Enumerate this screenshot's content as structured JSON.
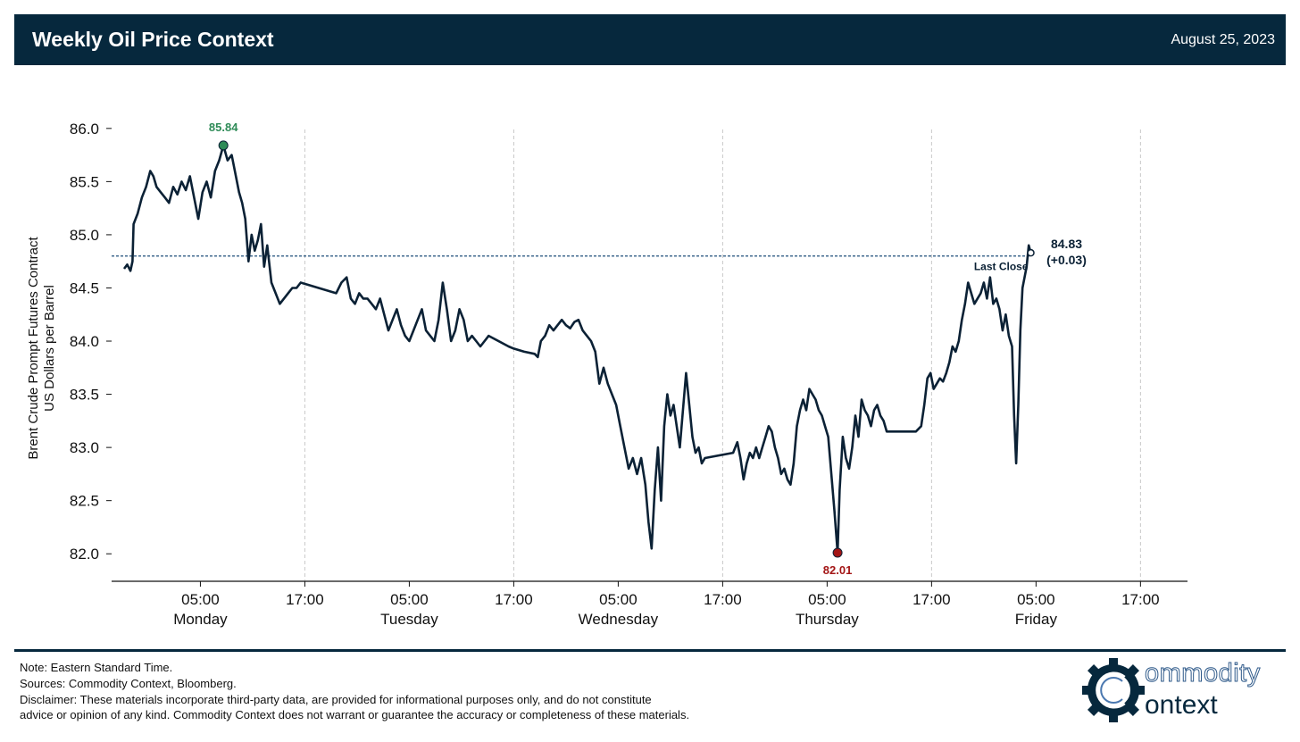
{
  "header": {
    "title": "Weekly Oil Price Context",
    "date": "August 25, 2023",
    "bg_color": "#06283d"
  },
  "chart_data": {
    "type": "line",
    "ylabel_line1": "Brent Crude Prompt Futures Contract",
    "ylabel_line2": "US Dollars per Barrel",
    "ylim": [
      81.75,
      86.2
    ],
    "yticks": [
      "86.0",
      "85.5",
      "85.0",
      "84.5",
      "84.0",
      "83.5",
      "83.0",
      "82.5",
      "82.0"
    ],
    "xlim": [
      -8.5,
      94.5
    ],
    "xticks": [
      {
        "x": 0,
        "label": "05:00",
        "sublabel": "Monday"
      },
      {
        "x": 10,
        "label": "17:00",
        "sublabel": ""
      },
      {
        "x": 20,
        "label": "05:00",
        "sublabel": "Tuesday"
      },
      {
        "x": 30,
        "label": "17:00",
        "sublabel": ""
      },
      {
        "x": 40,
        "label": "05:00",
        "sublabel": "Wednesday"
      },
      {
        "x": 50,
        "label": "17:00",
        "sublabel": ""
      },
      {
        "x": 60,
        "label": "05:00",
        "sublabel": "Thursday"
      },
      {
        "x": 70,
        "label": "17:00",
        "sublabel": ""
      },
      {
        "x": 80,
        "label": "05:00",
        "sublabel": "Friday"
      },
      {
        "x": 90,
        "label": "17:00",
        "sublabel": ""
      }
    ],
    "x_tick_note": "x in hours offset from Monday 05:00 scaled 1 unit = 1.2 h",
    "grid": "vertical dashed at 17:00 ticks",
    "line_color": "#0b2135",
    "series": [
      {
        "values": [
          [
            -7.3,
            84.68
          ],
          [
            -7.0,
            84.72
          ],
          [
            -6.7,
            84.66
          ],
          [
            -6.5,
            84.75
          ],
          [
            -6.4,
            85.1
          ],
          [
            -6.0,
            85.2
          ],
          [
            -5.6,
            85.35
          ],
          [
            -5.2,
            85.45
          ],
          [
            -4.8,
            85.6
          ],
          [
            -4.5,
            85.55
          ],
          [
            -4.2,
            85.45
          ],
          [
            -3.8,
            85.4
          ],
          [
            -3.4,
            85.35
          ],
          [
            -3.0,
            85.3
          ],
          [
            -2.6,
            85.45
          ],
          [
            -2.2,
            85.38
          ],
          [
            -1.8,
            85.5
          ],
          [
            -1.4,
            85.42
          ],
          [
            -1.0,
            85.55
          ],
          [
            -0.6,
            85.35
          ],
          [
            -0.2,
            85.15
          ],
          [
            0.2,
            85.4
          ],
          [
            0.6,
            85.5
          ],
          [
            1.0,
            85.35
          ],
          [
            1.4,
            85.6
          ],
          [
            1.8,
            85.7
          ],
          [
            2.2,
            85.84
          ],
          [
            2.6,
            85.7
          ],
          [
            3.0,
            85.75
          ],
          [
            3.4,
            85.55
          ],
          [
            3.7,
            85.4
          ],
          [
            4.0,
            85.3
          ],
          [
            4.3,
            85.15
          ],
          [
            4.6,
            84.75
          ],
          [
            4.9,
            85.0
          ],
          [
            5.2,
            84.85
          ],
          [
            5.5,
            84.95
          ],
          [
            5.8,
            85.1
          ],
          [
            6.1,
            84.7
          ],
          [
            6.4,
            84.9
          ],
          [
            6.8,
            84.55
          ],
          [
            7.2,
            84.45
          ],
          [
            7.6,
            84.35
          ],
          [
            8.0,
            84.4
          ],
          [
            8.4,
            84.45
          ],
          [
            8.8,
            84.5
          ],
          [
            9.2,
            84.5
          ],
          [
            9.6,
            84.55
          ],
          [
            13.0,
            84.45
          ],
          [
            13.5,
            84.55
          ],
          [
            14.0,
            84.6
          ],
          [
            14.4,
            84.4
          ],
          [
            14.8,
            84.35
          ],
          [
            15.2,
            84.45
          ],
          [
            15.6,
            84.4
          ],
          [
            16.0,
            84.4
          ],
          [
            16.4,
            84.35
          ],
          [
            16.8,
            84.3
          ],
          [
            17.2,
            84.4
          ],
          [
            17.6,
            84.25
          ],
          [
            18.0,
            84.1
          ],
          [
            18.4,
            84.2
          ],
          [
            18.8,
            84.3
          ],
          [
            19.2,
            84.15
          ],
          [
            19.6,
            84.05
          ],
          [
            20.0,
            84.0
          ],
          [
            20.4,
            84.1
          ],
          [
            20.8,
            84.2
          ],
          [
            21.2,
            84.3
          ],
          [
            21.6,
            84.1
          ],
          [
            22.0,
            84.05
          ],
          [
            22.4,
            84.0
          ],
          [
            22.8,
            84.2
          ],
          [
            23.2,
            84.55
          ],
          [
            23.6,
            84.3
          ],
          [
            24.0,
            84.0
          ],
          [
            24.4,
            84.1
          ],
          [
            24.8,
            84.3
          ],
          [
            25.2,
            84.2
          ],
          [
            25.6,
            84.0
          ],
          [
            26.0,
            84.05
          ],
          [
            26.4,
            84.0
          ],
          [
            26.8,
            83.95
          ],
          [
            27.2,
            84.0
          ],
          [
            27.6,
            84.05
          ],
          [
            29.5,
            83.95
          ],
          [
            30.0,
            83.93
          ],
          [
            31.0,
            83.9
          ],
          [
            32.0,
            83.88
          ],
          [
            32.3,
            83.85
          ],
          [
            32.6,
            84.0
          ],
          [
            33.0,
            84.05
          ],
          [
            33.4,
            84.15
          ],
          [
            33.8,
            84.1
          ],
          [
            34.2,
            84.15
          ],
          [
            34.6,
            84.2
          ],
          [
            35.0,
            84.15
          ],
          [
            35.4,
            84.12
          ],
          [
            35.8,
            84.18
          ],
          [
            36.2,
            84.2
          ],
          [
            36.6,
            84.1
          ],
          [
            37.0,
            84.05
          ],
          [
            37.4,
            84.0
          ],
          [
            37.8,
            83.9
          ],
          [
            38.2,
            83.6
          ],
          [
            38.6,
            83.75
          ],
          [
            39.0,
            83.6
          ],
          [
            39.4,
            83.5
          ],
          [
            39.8,
            83.4
          ],
          [
            40.2,
            83.2
          ],
          [
            40.6,
            83.0
          ],
          [
            41.0,
            82.8
          ],
          [
            41.4,
            82.9
          ],
          [
            41.8,
            82.75
          ],
          [
            42.2,
            82.9
          ],
          [
            42.6,
            82.65
          ],
          [
            42.9,
            82.3
          ],
          [
            43.2,
            82.05
          ],
          [
            43.5,
            82.6
          ],
          [
            43.8,
            83.0
          ],
          [
            44.1,
            82.5
          ],
          [
            44.4,
            83.2
          ],
          [
            44.7,
            83.5
          ],
          [
            45.0,
            83.3
          ],
          [
            45.3,
            83.4
          ],
          [
            45.6,
            83.2
          ],
          [
            45.9,
            83.0
          ],
          [
            46.2,
            83.35
          ],
          [
            46.5,
            83.7
          ],
          [
            46.8,
            83.4
          ],
          [
            47.1,
            83.1
          ],
          [
            47.4,
            82.95
          ],
          [
            47.7,
            83.0
          ],
          [
            48.0,
            82.85
          ],
          [
            48.3,
            82.9
          ],
          [
            51.0,
            82.95
          ],
          [
            51.4,
            83.05
          ],
          [
            51.7,
            82.9
          ],
          [
            52.0,
            82.7
          ],
          [
            52.3,
            82.85
          ],
          [
            52.6,
            82.95
          ],
          [
            52.9,
            82.9
          ],
          [
            53.2,
            83.0
          ],
          [
            53.5,
            82.9
          ],
          [
            53.8,
            83.0
          ],
          [
            54.1,
            83.1
          ],
          [
            54.4,
            83.2
          ],
          [
            54.7,
            83.15
          ],
          [
            55.0,
            83.0
          ],
          [
            55.3,
            82.9
          ],
          [
            55.6,
            82.75
          ],
          [
            55.9,
            82.8
          ],
          [
            56.2,
            82.7
          ],
          [
            56.5,
            82.65
          ],
          [
            56.8,
            82.85
          ],
          [
            57.1,
            83.2
          ],
          [
            57.4,
            83.35
          ],
          [
            57.7,
            83.45
          ],
          [
            58.0,
            83.35
          ],
          [
            58.3,
            83.55
          ],
          [
            58.6,
            83.5
          ],
          [
            58.9,
            83.45
          ],
          [
            59.2,
            83.35
          ],
          [
            59.5,
            83.3
          ],
          [
            59.8,
            83.2
          ],
          [
            60.1,
            83.1
          ],
          [
            60.4,
            82.75
          ],
          [
            60.7,
            82.4
          ],
          [
            61.0,
            82.01
          ],
          [
            61.2,
            82.6
          ],
          [
            61.5,
            83.1
          ],
          [
            61.8,
            82.9
          ],
          [
            62.1,
            82.8
          ],
          [
            62.4,
            83.0
          ],
          [
            62.7,
            83.3
          ],
          [
            63.0,
            83.1
          ],
          [
            63.3,
            83.45
          ],
          [
            63.6,
            83.35
          ],
          [
            63.9,
            83.3
          ],
          [
            64.2,
            83.2
          ],
          [
            64.5,
            83.35
          ],
          [
            64.8,
            83.4
          ],
          [
            65.1,
            83.3
          ],
          [
            65.4,
            83.25
          ],
          [
            65.7,
            83.15
          ],
          [
            68.5,
            83.15
          ],
          [
            69.0,
            83.2
          ],
          [
            69.3,
            83.4
          ],
          [
            69.6,
            83.65
          ],
          [
            69.9,
            83.7
          ],
          [
            70.2,
            83.55
          ],
          [
            70.5,
            83.6
          ],
          [
            70.8,
            83.65
          ],
          [
            71.1,
            83.62
          ],
          [
            71.4,
            83.7
          ],
          [
            71.7,
            83.8
          ],
          [
            72.0,
            83.95
          ],
          [
            72.3,
            83.9
          ],
          [
            72.6,
            84.0
          ],
          [
            72.9,
            84.2
          ],
          [
            73.2,
            84.35
          ],
          [
            73.5,
            84.55
          ],
          [
            73.8,
            84.45
          ],
          [
            74.1,
            84.35
          ],
          [
            74.4,
            84.4
          ],
          [
            74.7,
            84.45
          ],
          [
            75.0,
            84.55
          ],
          [
            75.3,
            84.4
          ],
          [
            75.6,
            84.6
          ],
          [
            75.9,
            84.35
          ],
          [
            76.2,
            84.4
          ],
          [
            76.5,
            84.3
          ],
          [
            76.8,
            84.1
          ],
          [
            77.1,
            84.25
          ],
          [
            77.4,
            84.05
          ],
          [
            77.7,
            83.95
          ],
          [
            77.9,
            83.3
          ],
          [
            78.1,
            82.85
          ],
          [
            78.3,
            83.4
          ],
          [
            78.5,
            84.1
          ],
          [
            78.7,
            84.5
          ],
          [
            78.9,
            84.6
          ],
          [
            79.1,
            84.7
          ],
          [
            79.3,
            84.9
          ],
          [
            79.5,
            84.83
          ]
        ]
      }
    ],
    "last_close": {
      "value": 84.8,
      "label": "Last Close"
    },
    "max_point": {
      "x": 2.2,
      "y": 85.84,
      "label": "85.84",
      "color": "#2e8b57"
    },
    "min_point": {
      "x": 61.0,
      "y": 82.01,
      "label": "82.01",
      "color": "#a31515"
    },
    "last_point": {
      "x": 79.5,
      "y": 84.83,
      "label": "84.83",
      "change": "(+0.03)"
    }
  },
  "footer": {
    "note": "Note: Eastern Standard Time.",
    "sources": "Sources: Commodity Context, Bloomberg.",
    "disclaimer_line1": "Disclaimer: These materials incorporate third-party data, are provided for informational purposes only, and do not constitute",
    "disclaimer_line2": "advice or opinion of any kind. Commodity Context does not warrant or guarantee the accuracy or completeness of these materials."
  },
  "logo": {
    "word1": "ommodity",
    "word2": "ontext"
  }
}
